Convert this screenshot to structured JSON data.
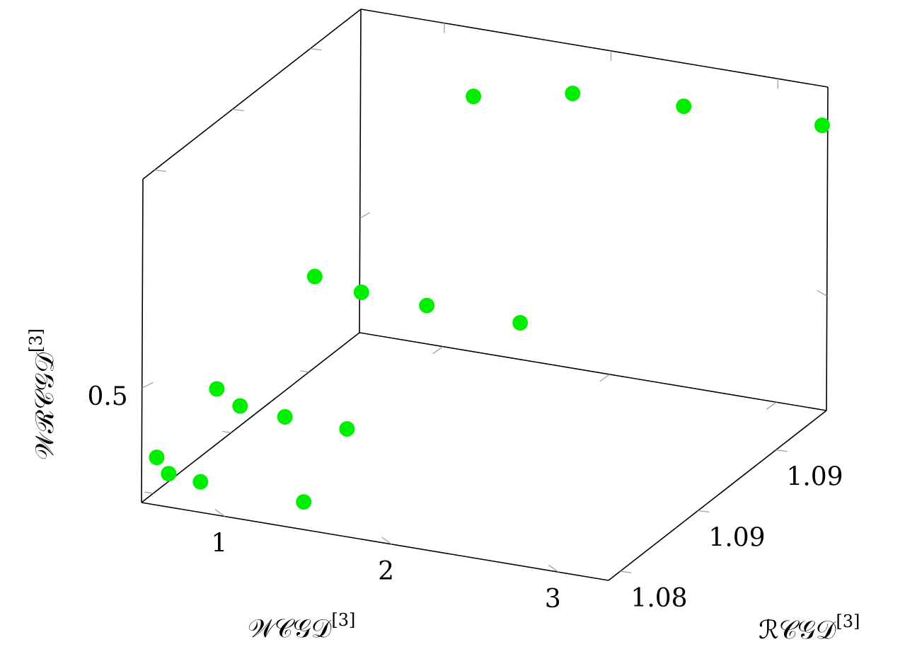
{
  "chart_data": {
    "type": "scatter3d",
    "xlabel": "𝒲𝒞𝒢𝒟",
    "xlabel_sup": "[3]",
    "ylabel": "ℛ𝒞𝒢𝒟",
    "ylabel_sup": "[3]",
    "zlabel": "𝒲ℛ𝒞𝒢𝒟",
    "zlabel_sup": "[3]",
    "xlim": [
      0.5,
      3.3
    ],
    "ylim": [
      1.0837,
      1.0893
    ],
    "zlim": [
      0.3,
      0.865
    ],
    "xticks": [
      1,
      2,
      3
    ],
    "yticks": [
      {
        "value": 1.084,
        "label": "1.08"
      },
      {
        "value": 1.086,
        "label": "1.09"
      },
      {
        "value": 1.088,
        "label": "1.09"
      }
    ],
    "zticks": [
      0.5
    ],
    "series": [
      {
        "color": "#00ee00",
        "x": [
          1.2,
          1.794,
          2.46,
          3.29,
          0.556,
          0.836,
          1.228,
          1.788,
          0.553,
          0.693,
          0.962,
          1.334,
          0.52,
          0.592,
          0.783,
          1.402
        ],
        "y": [
          1.0892,
          1.0892,
          1.0892,
          1.0892,
          1.0879,
          1.0879,
          1.0879,
          1.0879,
          1.0854,
          1.0854,
          1.0854,
          1.0854,
          1.084,
          1.084,
          1.084,
          1.084
        ],
        "z": [
          0.752,
          0.786,
          0.796,
          0.803,
          0.475,
          0.461,
          0.457,
          0.454,
          0.411,
          0.388,
          0.382,
          0.379,
          0.364,
          0.339,
          0.334,
          0.329
        ]
      }
    ]
  }
}
